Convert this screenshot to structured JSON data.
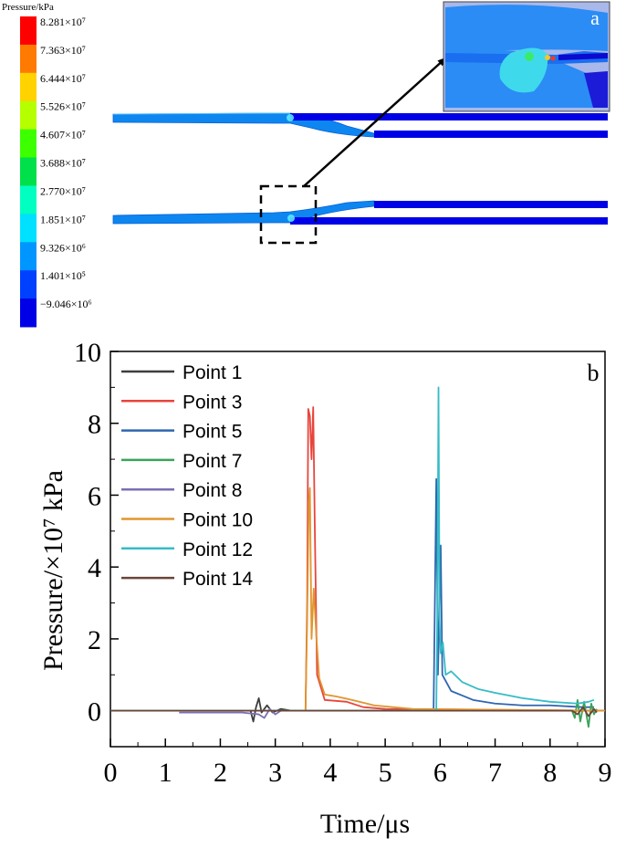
{
  "panel_a": {
    "label": "a",
    "colorbar": {
      "title": "Pressure/kPa",
      "levels": [
        {
          "label": "8.281×10⁷",
          "color": "#ff0000"
        },
        {
          "label": "7.363×10⁷",
          "color": "#ff7a00"
        },
        {
          "label": "6.444×10⁷",
          "color": "#ffd200"
        },
        {
          "label": "5.526×10⁷",
          "color": "#b6ff00"
        },
        {
          "label": "4.607×10⁷",
          "color": "#3cff00"
        },
        {
          "label": "3.688×10⁷",
          "color": "#00e04a"
        },
        {
          "label": "2.770×10⁷",
          "color": "#00ffc0"
        },
        {
          "label": "1.851×10⁷",
          "color": "#00e0ff"
        },
        {
          "label": "9.326×10⁶",
          "color": "#0096ff"
        },
        {
          "label": "1.401×10⁵",
          "color": "#0040ff"
        },
        {
          "label": "−9.046×10⁶",
          "color": "#0000e6"
        }
      ]
    }
  },
  "chart_data": {
    "type": "line",
    "panel_label": "b",
    "xlabel": "Time/μs",
    "ylabel": "Pressure/×10⁷ kPa",
    "xlim": [
      0,
      9
    ],
    "ylim": [
      -1,
      10
    ],
    "x_ticks": [
      "0",
      "1",
      "2",
      "3",
      "4",
      "5",
      "6",
      "7",
      "8",
      "9"
    ],
    "y_ticks": [
      "0",
      "2",
      "4",
      "6",
      "8",
      "10"
    ],
    "legend_position": "top-left",
    "series": [
      {
        "name": "Point 1",
        "color": "#3d3d3d",
        "points": [
          [
            0,
            0
          ],
          [
            2.55,
            0
          ],
          [
            2.6,
            -0.3
          ],
          [
            2.65,
            0.1
          ],
          [
            2.7,
            0.35
          ],
          [
            2.75,
            -0.05
          ],
          [
            2.85,
            0.15
          ],
          [
            2.95,
            -0.05
          ],
          [
            3.1,
            0.05
          ],
          [
            3.3,
            0
          ],
          [
            9,
            0
          ]
        ]
      },
      {
        "name": "Point 3",
        "color": "#e8453c",
        "points": [
          [
            0,
            0
          ],
          [
            3.55,
            0
          ],
          [
            3.58,
            3.0
          ],
          [
            3.6,
            8.4
          ],
          [
            3.63,
            8.2
          ],
          [
            3.66,
            7.0
          ],
          [
            3.69,
            8.45
          ],
          [
            3.72,
            5.0
          ],
          [
            3.76,
            1.0
          ],
          [
            3.9,
            0.3
          ],
          [
            4.3,
            0.25
          ],
          [
            4.6,
            0.1
          ],
          [
            5,
            0.05
          ],
          [
            9,
            0
          ]
        ]
      },
      {
        "name": "Point 5",
        "color": "#2e66b0",
        "points": [
          [
            0,
            0
          ],
          [
            5.88,
            0
          ],
          [
            5.9,
            2.5
          ],
          [
            5.93,
            6.45
          ],
          [
            5.96,
            1.0
          ],
          [
            5.99,
            3.0
          ],
          [
            6.01,
            4.6
          ],
          [
            6.04,
            1.0
          ],
          [
            6.2,
            0.55
          ],
          [
            6.6,
            0.3
          ],
          [
            7.0,
            0.2
          ],
          [
            7.5,
            0.15
          ],
          [
            8.0,
            0.15
          ],
          [
            8.6,
            0.1
          ],
          [
            8.8,
            0.1
          ]
        ]
      },
      {
        "name": "Point 7",
        "color": "#3aa35a",
        "points": [
          [
            0,
            0
          ],
          [
            8.4,
            0
          ],
          [
            8.45,
            -0.2
          ],
          [
            8.5,
            0.3
          ],
          [
            8.55,
            -0.3
          ],
          [
            8.62,
            0.25
          ],
          [
            8.7,
            -0.45
          ],
          [
            8.75,
            0.2
          ],
          [
            8.8,
            -0.1
          ],
          [
            8.85,
            0.05
          ]
        ]
      },
      {
        "name": "Point 8",
        "color": "#7b6fb5",
        "points": [
          [
            1.25,
            -0.05
          ],
          [
            2.4,
            -0.05
          ],
          [
            2.7,
            -0.1
          ],
          [
            2.8,
            -0.2
          ],
          [
            2.9,
            0.05
          ],
          [
            3.0,
            -0.1
          ],
          [
            3.1,
            0
          ],
          [
            3.3,
            0
          ]
        ]
      },
      {
        "name": "Point 10",
        "color": "#e0952e",
        "points": [
          [
            0,
            0
          ],
          [
            3.55,
            0
          ],
          [
            3.58,
            2.5
          ],
          [
            3.61,
            5.8
          ],
          [
            3.63,
            6.2
          ],
          [
            3.66,
            2.0
          ],
          [
            3.7,
            3.4
          ],
          [
            3.75,
            2.0
          ],
          [
            3.8,
            0.9
          ],
          [
            3.9,
            0.45
          ],
          [
            4.1,
            0.4
          ],
          [
            4.4,
            0.3
          ],
          [
            4.8,
            0.15
          ],
          [
            5.5,
            0.05
          ],
          [
            9,
            0
          ]
        ]
      },
      {
        "name": "Point 12",
        "color": "#36bcc6",
        "points": [
          [
            0,
            0
          ],
          [
            5.93,
            0
          ],
          [
            5.95,
            3.0
          ],
          [
            5.97,
            9.0
          ],
          [
            5.99,
            2.5
          ],
          [
            6.01,
            1.6
          ],
          [
            6.05,
            1.9
          ],
          [
            6.1,
            1.0
          ],
          [
            6.2,
            1.1
          ],
          [
            6.4,
            0.8
          ],
          [
            6.7,
            0.6
          ],
          [
            7.0,
            0.5
          ],
          [
            7.5,
            0.35
          ],
          [
            8.0,
            0.25
          ],
          [
            8.5,
            0.2
          ],
          [
            8.7,
            0.25
          ],
          [
            8.8,
            0.3
          ]
        ]
      },
      {
        "name": "Point 14",
        "color": "#6b4438",
        "points": [
          [
            0,
            0
          ],
          [
            8.4,
            0
          ],
          [
            8.5,
            -0.1
          ],
          [
            8.6,
            0.1
          ],
          [
            8.7,
            -0.15
          ],
          [
            8.8,
            0.05
          ],
          [
            8.85,
            -0.05
          ]
        ]
      }
    ]
  }
}
